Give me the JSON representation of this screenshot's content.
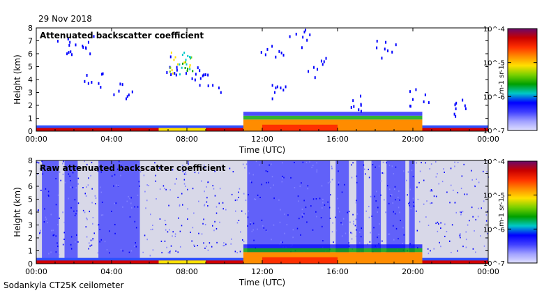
{
  "header": {
    "date": "29 Nov 2018"
  },
  "footer": {
    "instrument": "Sodankyla CT25K ceilometer"
  },
  "colorbar": {
    "ticks": [
      "10^-4",
      "10^-5",
      "10^-6",
      "10^-7"
    ],
    "label": "m-1 sr-1",
    "stops": [
      "#6a0a6a",
      "#c80000",
      "#ff3000",
      "#ff8c00",
      "#ffe000",
      "#7ad000",
      "#00a000",
      "#00c8c8",
      "#0000ff",
      "#4040ff",
      "#a0a0ff",
      "#e0e0ff"
    ]
  },
  "chart_data": [
    {
      "type": "heatmap",
      "title": "Attenuated backscatter coefficient",
      "xlabel": "Time (UTC)",
      "ylabel": "Height (km)",
      "x_ticks": [
        "00:00",
        "04:00",
        "08:00",
        "12:00",
        "16:00",
        "20:00",
        "00:00"
      ],
      "y_ticks": [
        "0",
        "1",
        "2",
        "3",
        "4",
        "5",
        "6",
        "7",
        "8"
      ],
      "xlim": [
        0,
        24
      ],
      "ylim": [
        0,
        8
      ],
      "background": "#ffffff",
      "colorbar_range": [
        1e-07,
        0.0001
      ]
    },
    {
      "type": "heatmap",
      "title": "Raw attenuated backscatter coefficient",
      "xlabel": "Time (UTC)",
      "ylabel": "Height (km)",
      "x_ticks": [
        "00:00",
        "04:00",
        "08:00",
        "12:00",
        "16:00",
        "20:00",
        "00:00"
      ],
      "y_ticks": [
        "0",
        "1",
        "2",
        "3",
        "4",
        "5",
        "6",
        "7",
        "8"
      ],
      "xlim": [
        0,
        24
      ],
      "ylim": [
        0,
        8
      ],
      "background": "#d8d8e8",
      "colorbar_range": [
        1e-07,
        0.0001
      ]
    }
  ]
}
